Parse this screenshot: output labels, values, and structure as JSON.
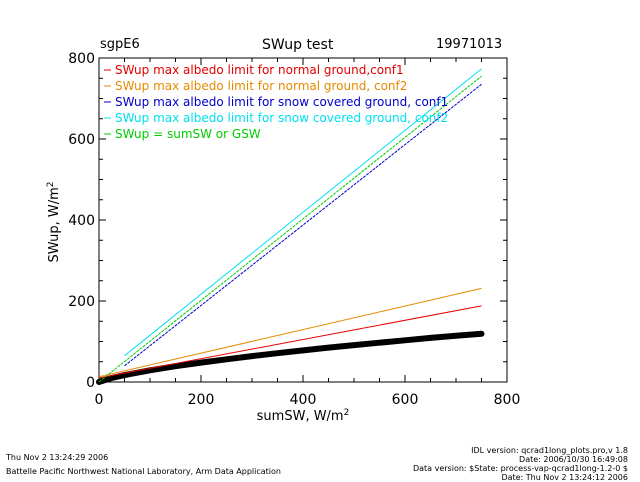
{
  "header": {
    "site": "sgpE6",
    "title": "SWup test",
    "date": "19971013"
  },
  "footer": {
    "left_line1": "Thu Nov  2 13:24:29 2006",
    "left_line2": "Battelle Pacific Northwest National Laboratory, Arm Data Application",
    "right_line1": "IDL version: qcrad1long_plots.pro,v 1.8",
    "right_line2": "Date: 2006/10/30 16:49:08",
    "right_line3": "Data version: $State: process-vap-qcrad1long-1.2-0 $",
    "right_line4": "Date: Thu Nov  2 13:24:12 2006"
  },
  "chart_data": {
    "type": "line",
    "title": "SWup test",
    "xlabel": "sumSW, W/m",
    "xlabel_sup": "2",
    "ylabel": "SWup, W/m",
    "ylabel_sup": "2",
    "xlim": [
      0,
      800
    ],
    "ylim": [
      0,
      800
    ],
    "xticks": [
      0,
      200,
      400,
      600,
      800
    ],
    "yticks": [
      0,
      200,
      400,
      600,
      800
    ],
    "grid": false,
    "legend_position": "top-left",
    "series": [
      {
        "name": "SWup max albedo limit for normal ground,conf1",
        "color": "#e60000",
        "x": [
          0,
          750
        ],
        "y": [
          10,
          188
        ]
      },
      {
        "name": "SWup max albedo limit for normal ground, conf2",
        "color": "#e68a00",
        "x": [
          0,
          750
        ],
        "y": [
          13,
          231
        ]
      },
      {
        "name": "SWup max albedo limit for snow covered ground, conf1",
        "color": "#0000cc",
        "x": [
          50,
          750
        ],
        "y": [
          40,
          735
        ]
      },
      {
        "name": "SWup max albedo limit for snow covered ground, conf2",
        "color": "#00e0f0",
        "x": [
          50,
          750
        ],
        "y": [
          65,
          773
        ]
      },
      {
        "name": "SWup = sumSW or GSW",
        "color": "#00cc00",
        "x": [
          0,
          750
        ],
        "y": [
          0,
          755
        ]
      }
    ],
    "scatter": {
      "color": "#000000",
      "x": [
        0,
        25,
        50,
        100,
        150,
        200,
        250,
        300,
        350,
        400,
        450,
        500,
        550,
        600,
        650,
        700,
        750
      ],
      "y": [
        0,
        10,
        17,
        29,
        39,
        48,
        56,
        64,
        71,
        78,
        85,
        91,
        97,
        103,
        109,
        114,
        119
      ]
    }
  }
}
